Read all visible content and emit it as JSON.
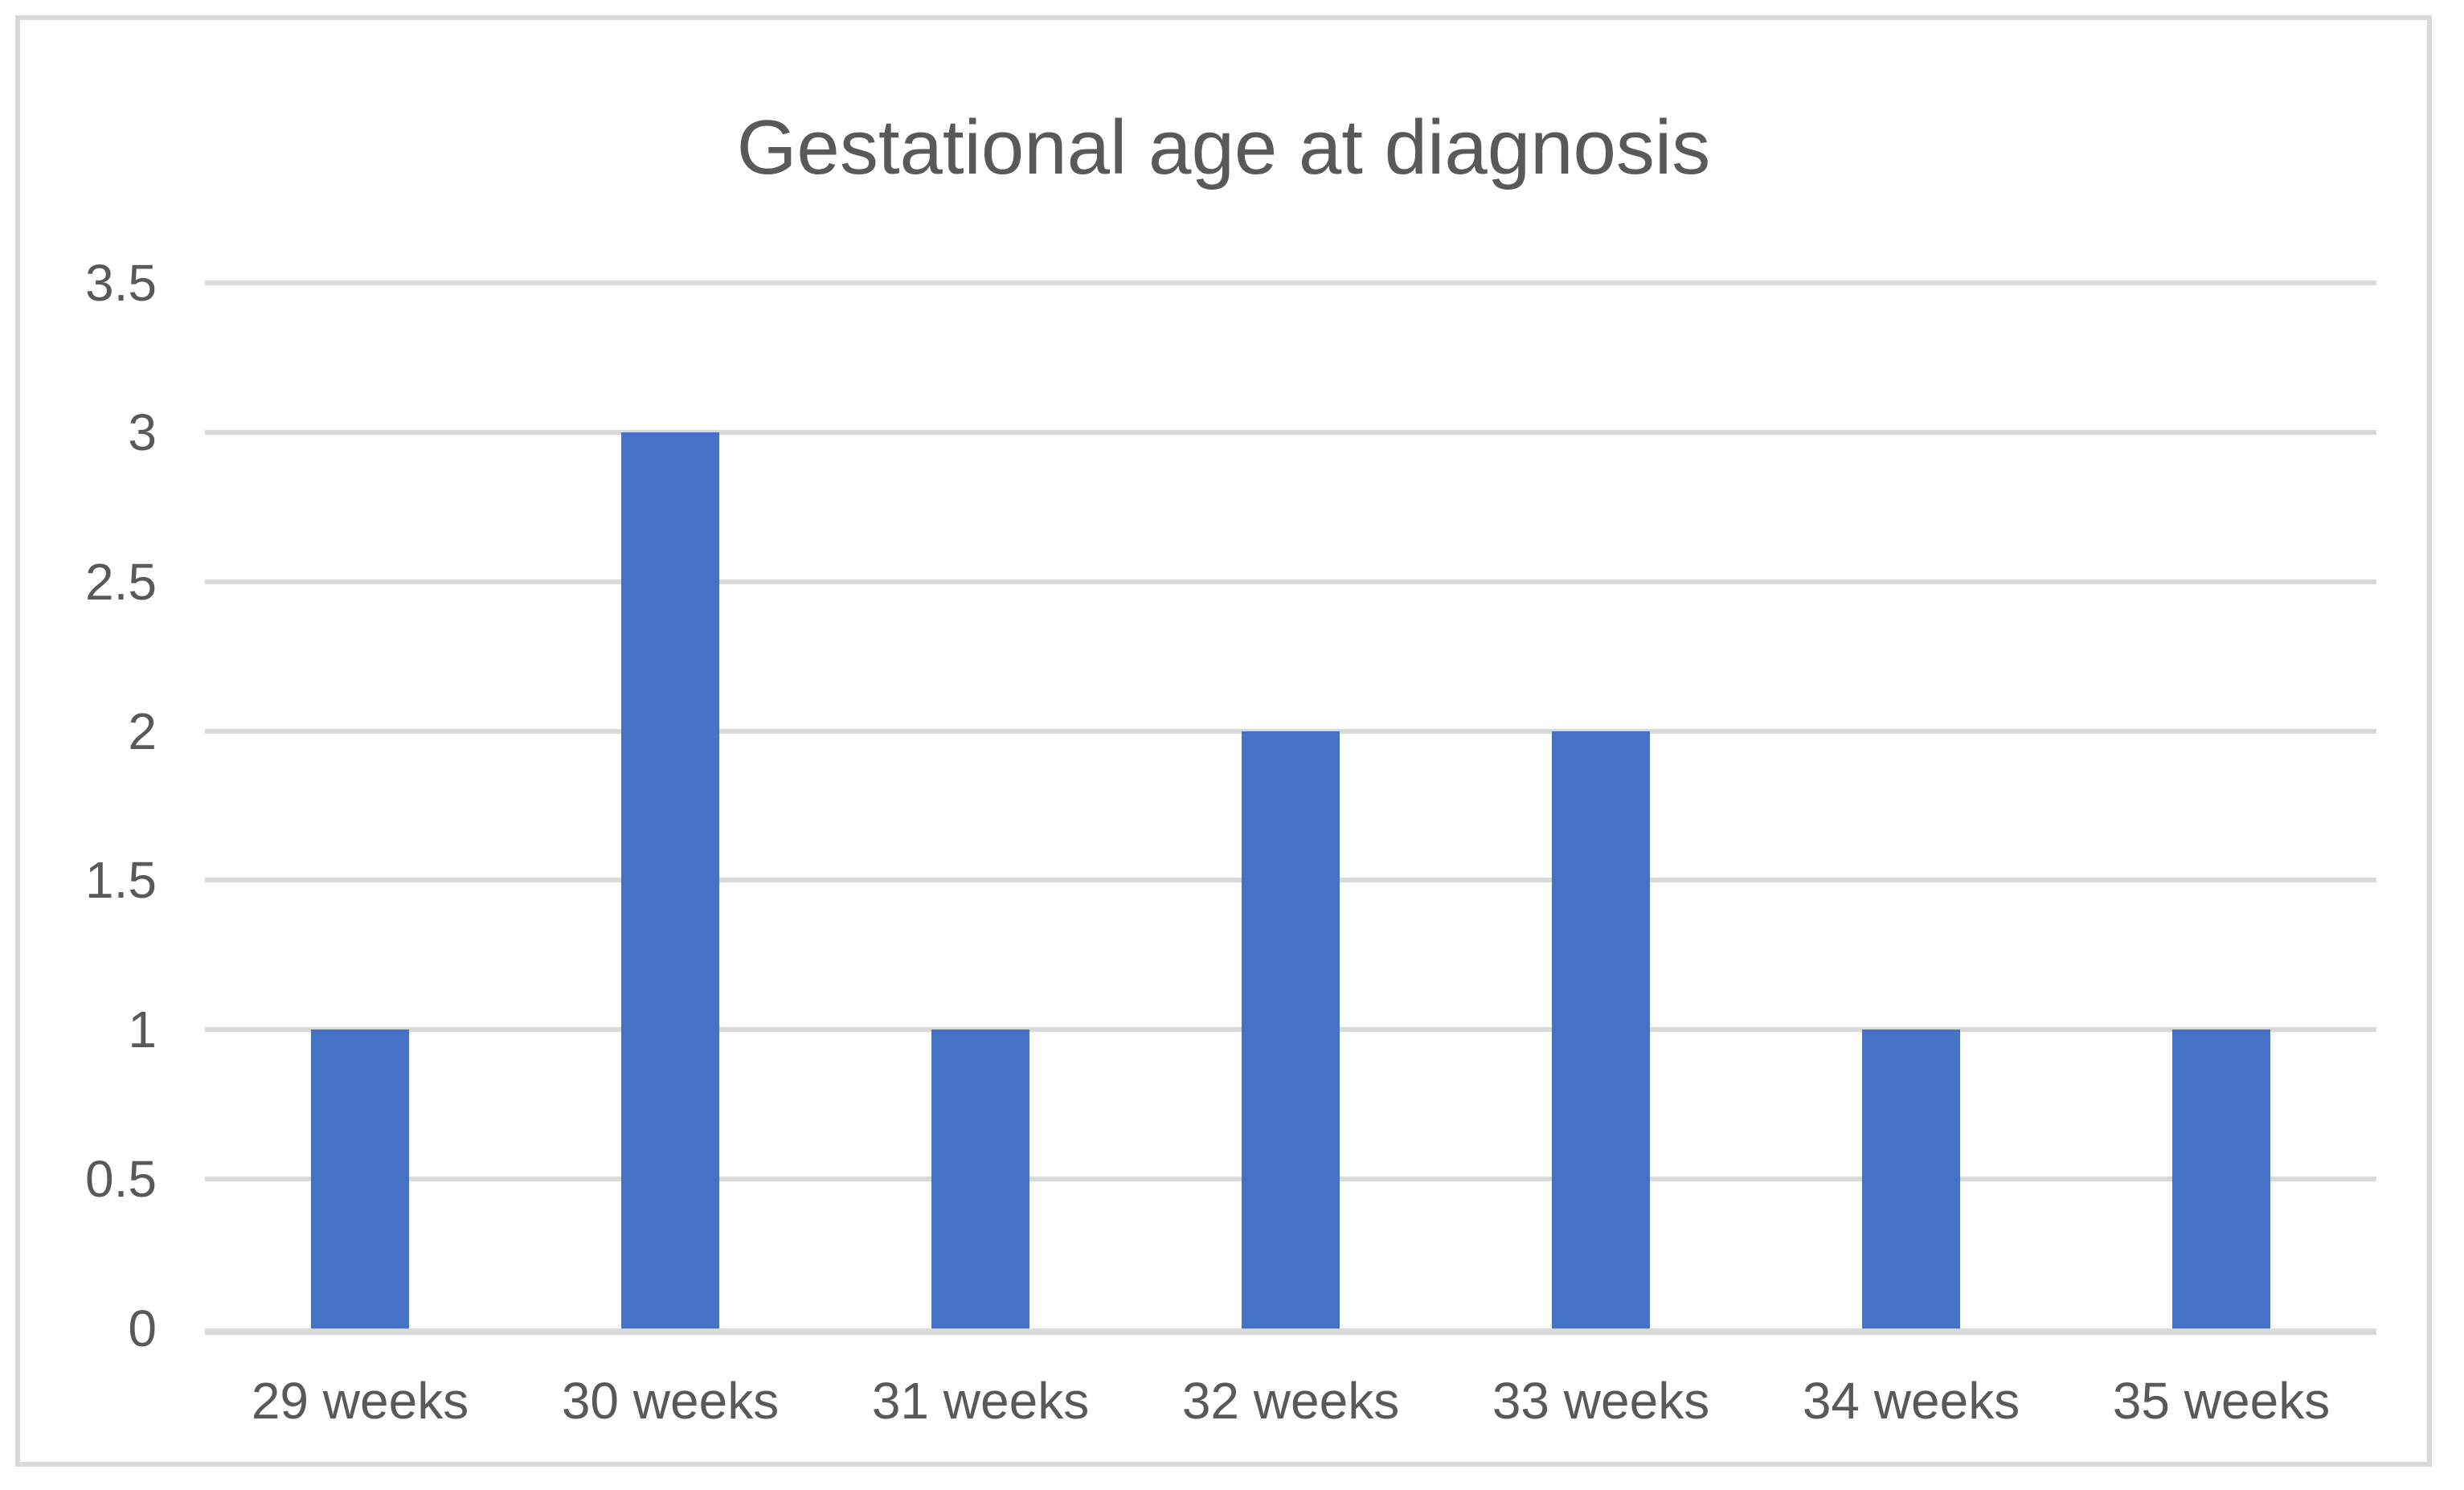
{
  "chart_data": {
    "type": "bar",
    "title": "Gestational age at diagnosis",
    "categories": [
      "29 weeks",
      "30 weeks",
      "31 weeks",
      "32 weeks",
      "33 weeks",
      "34 weeks",
      "35 weeks"
    ],
    "values": [
      1,
      3,
      1,
      2,
      2,
      1,
      1
    ],
    "xlabel": "",
    "ylabel": "",
    "ylim": [
      0,
      3.5
    ],
    "yticks": [
      {
        "value": 0,
        "label": "0"
      },
      {
        "value": 0.5,
        "label": "0.5"
      },
      {
        "value": 1,
        "label": "1"
      },
      {
        "value": 1.5,
        "label": "1.5"
      },
      {
        "value": 2,
        "label": "2"
      },
      {
        "value": 2.5,
        "label": "2.5"
      },
      {
        "value": 3,
        "label": "3"
      },
      {
        "value": 3.5,
        "label": "3.5"
      }
    ],
    "grid": true,
    "legend": false,
    "colors": {
      "bar": "#4472C4",
      "gridline": "#D9D9D9",
      "text": "#595959",
      "frame_border": "#D9D9D9",
      "background": "#FFFFFF"
    }
  }
}
